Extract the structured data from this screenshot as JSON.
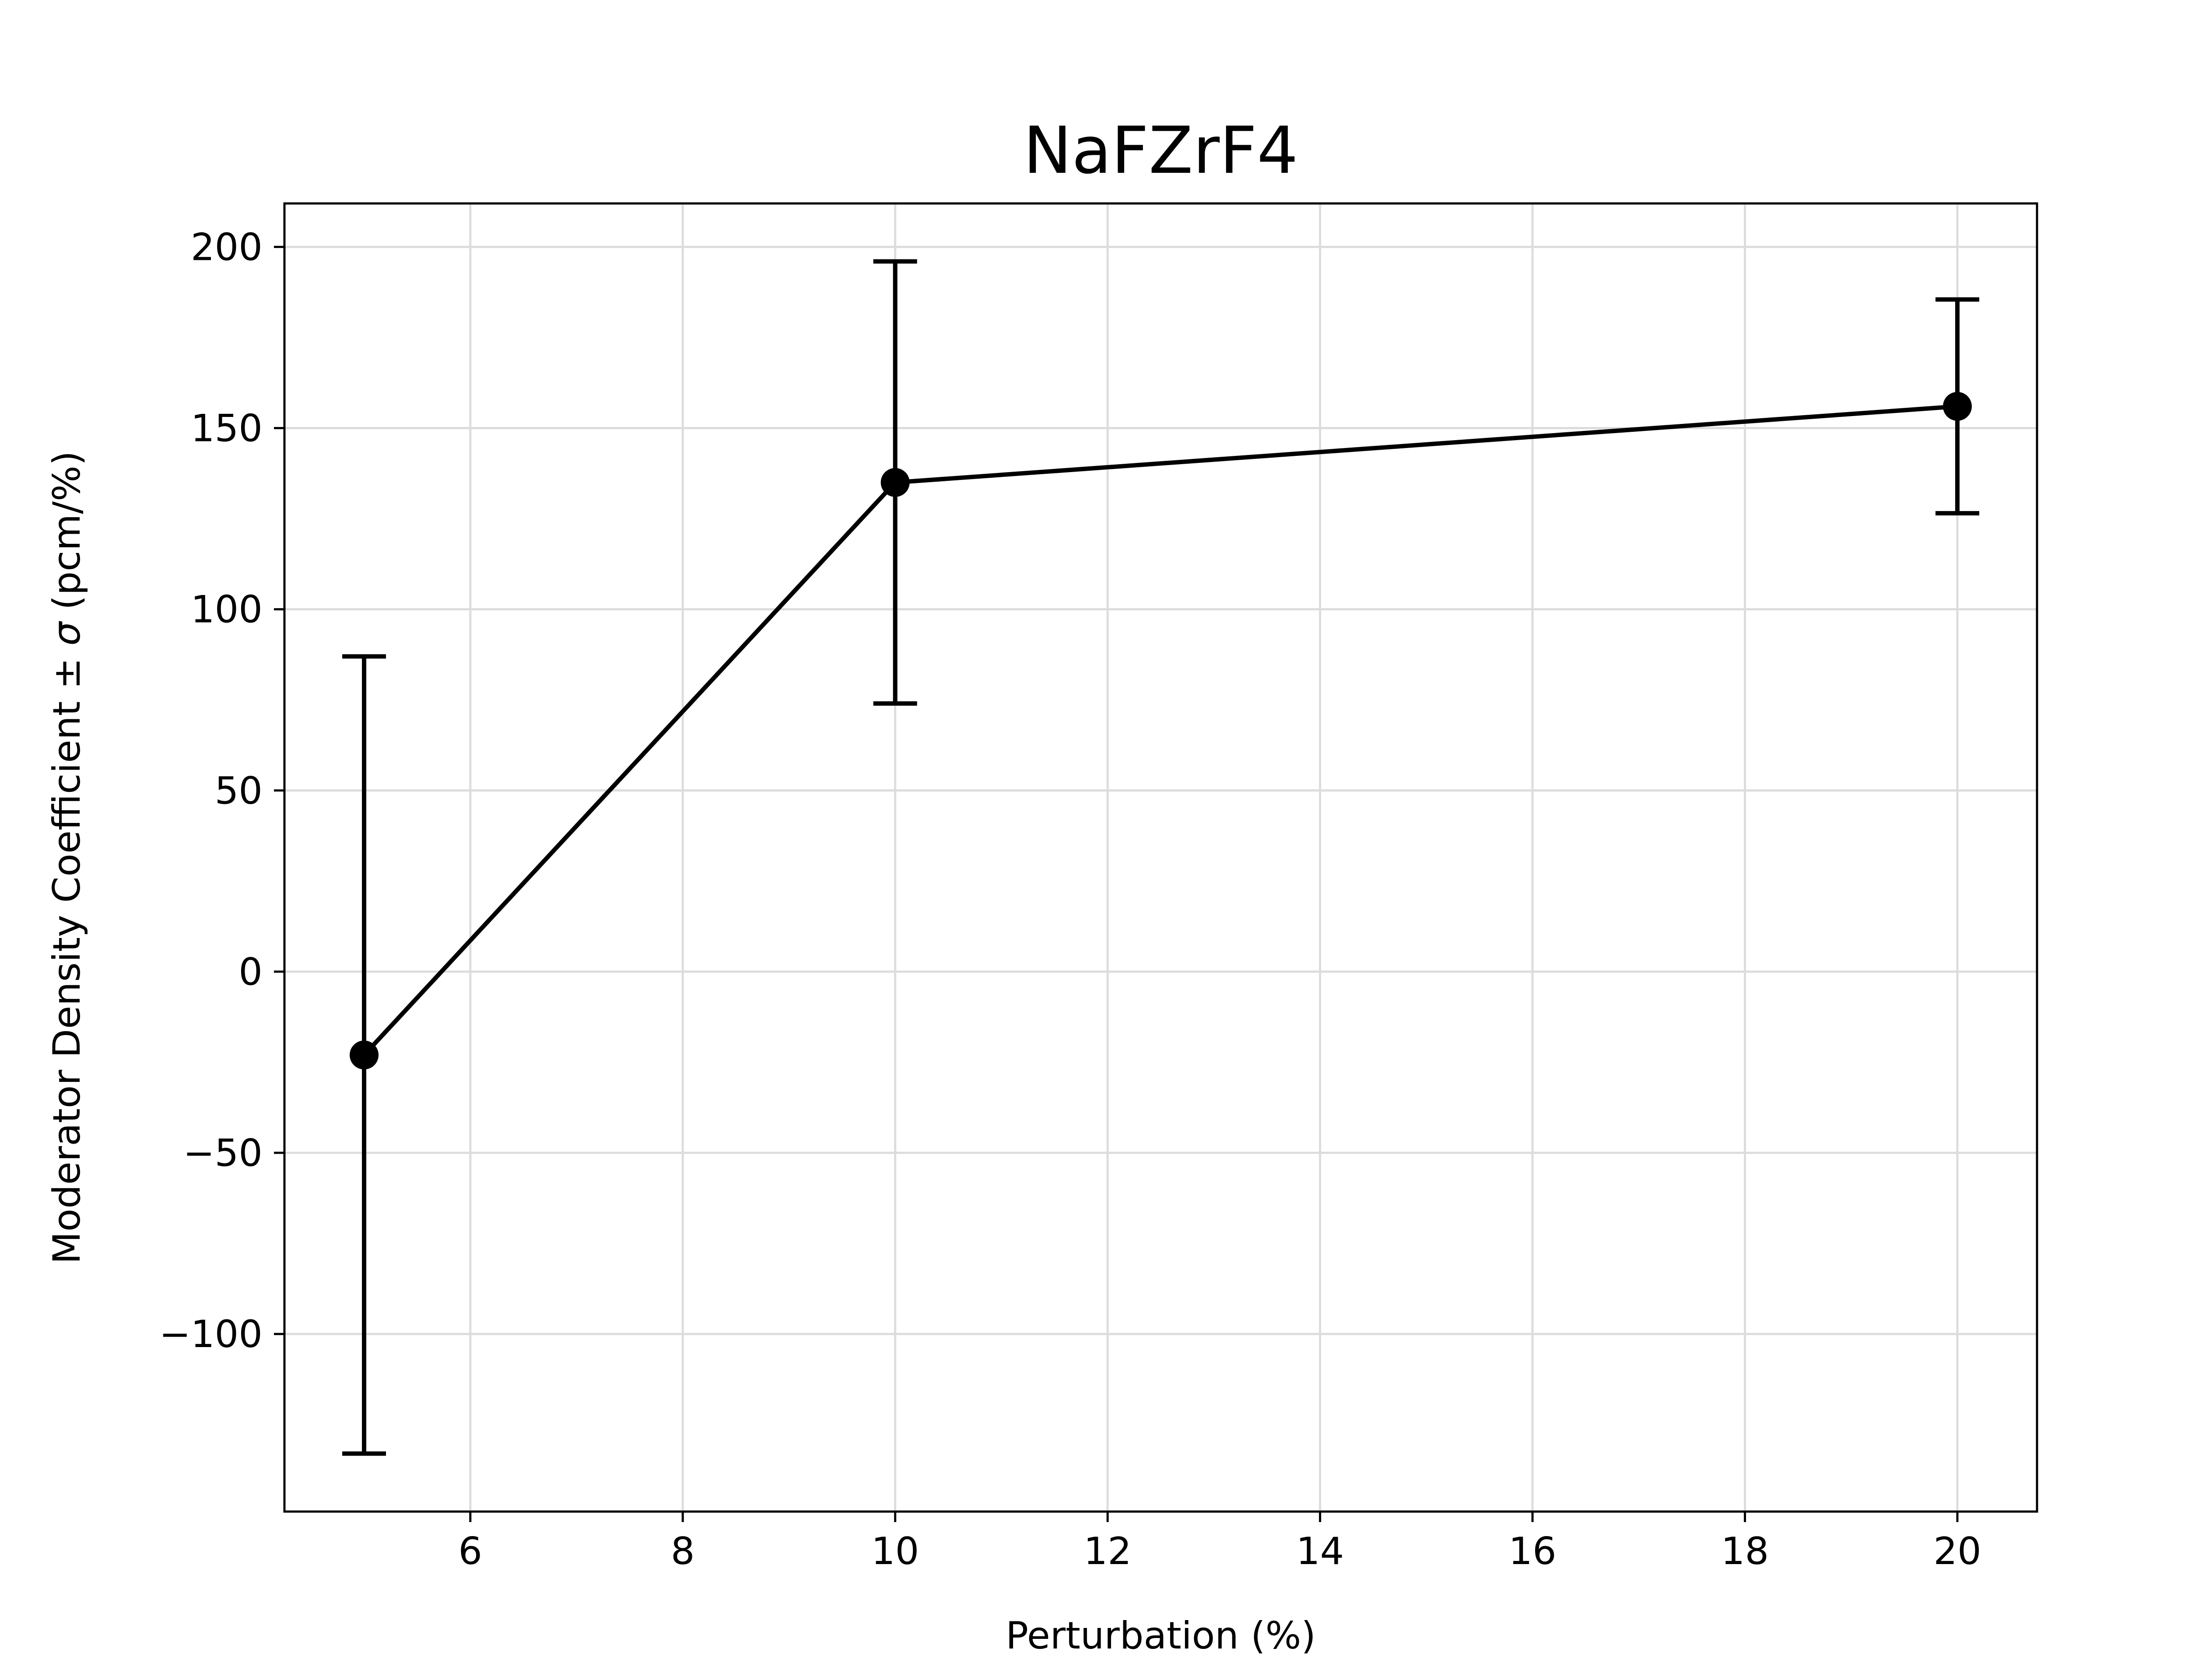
{
  "chart_data": {
    "type": "line",
    "title": "NaFZrF4",
    "xlabel": "Perturbation (%)",
    "ylabel_parts": [
      "Moderator Density Coefficient ± ",
      "σ",
      " (pcm/%)"
    ],
    "xlim": [
      4.25,
      20.75
    ],
    "ylim": [
      -149,
      212
    ],
    "xticks": [
      6,
      8,
      10,
      12,
      14,
      16,
      18,
      20
    ],
    "xtick_labels": [
      "6",
      "8",
      "10",
      "12",
      "14",
      "16",
      "18",
      "20"
    ],
    "yticks": [
      -100,
      -50,
      0,
      50,
      100,
      150,
      200
    ],
    "ytick_labels": [
      "−100",
      "−50",
      "0",
      "50",
      "100",
      "150",
      "200"
    ],
    "grid": true,
    "series": [
      {
        "x": [
          5,
          10,
          20
        ],
        "y": [
          -23,
          135,
          156
        ],
        "yerr": [
          110,
          61,
          29.5
        ],
        "color": "#000000",
        "marker": "circle"
      }
    ]
  }
}
